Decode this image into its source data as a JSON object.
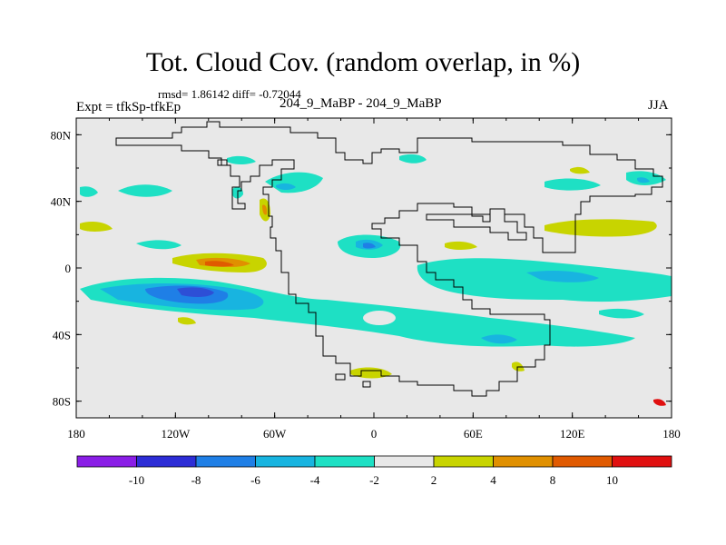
{
  "header": {
    "title": "Tot. Cloud Cov. (random overlap, in %)",
    "stats": "rmsd= 1.86142  diff= -0.72044",
    "expt": "Expt = tfkSp-tfkEp",
    "subtitle": "204_9_MaBP - 204_9_MaBP",
    "season": "JJA"
  },
  "map": {
    "background": "#e8e8e8",
    "x_ticks": [
      "180",
      "120W",
      "60W",
      "0",
      "60E",
      "120E",
      "180"
    ],
    "y_ticks": [
      "80N",
      "40N",
      "0",
      "40S",
      "80S"
    ],
    "lon_values": [
      -180,
      -120,
      -60,
      0,
      60,
      120,
      180
    ],
    "lat_values": [
      80,
      40,
      0,
      -40,
      -80
    ],
    "lon_range": [
      -180,
      180
    ],
    "lat_range": [
      -90,
      90
    ]
  },
  "colorbar": {
    "colors": [
      "#8a1ee6",
      "#2d2dd6",
      "#1f7fe6",
      "#18b4e0",
      "#1ee0c4",
      "#e8e8e8",
      "#c8d400",
      "#e09000",
      "#e05a00",
      "#e01010"
    ],
    "labels": [
      "-10",
      "-8",
      "-6",
      "-4",
      "-2",
      "2",
      "4",
      "8",
      "10"
    ]
  },
  "legend_colors": {
    "neg2": "#1ee0c4",
    "neg4": "#18b4e0",
    "neg6": "#1f7fe6",
    "neg8": "#2d2dd6",
    "pos2": "#c8d400",
    "pos4": "#e09000",
    "pos8": "#e05a00"
  }
}
